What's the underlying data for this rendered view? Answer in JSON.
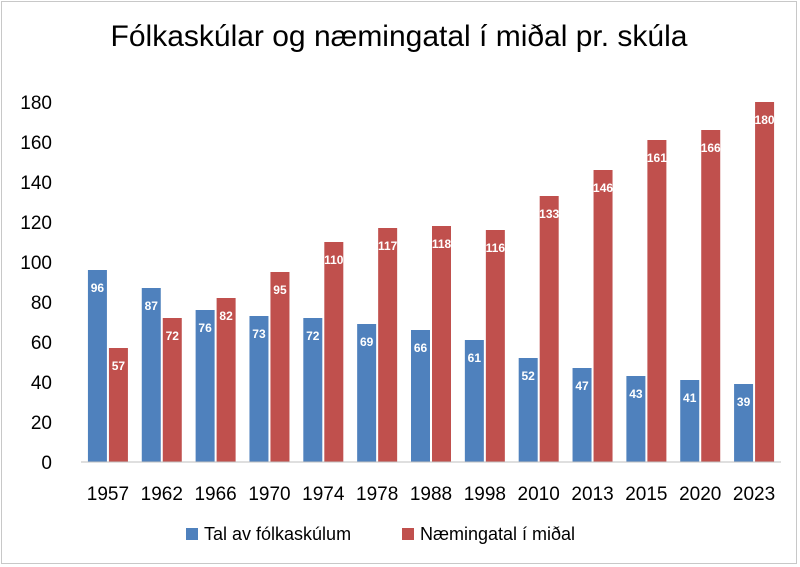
{
  "chart_data": {
    "type": "bar",
    "title": "Fólkaskúlar og næmingatal í miðal pr. skúla",
    "xlabel": "",
    "ylabel": "",
    "ylim": [
      0,
      180
    ],
    "yticks": [
      0,
      20,
      40,
      60,
      80,
      100,
      120,
      140,
      160,
      180
    ],
    "grid": false,
    "legend_position": "bottom",
    "categories": [
      "1957",
      "1962",
      "1966",
      "1970",
      "1974",
      "1978",
      "1988",
      "1998",
      "2010",
      "2013",
      "2015",
      "2020",
      "2023"
    ],
    "series": [
      {
        "name": "Tal av fólkaskúlum",
        "color": "#4f81bd",
        "values": [
          96,
          87,
          76,
          73,
          72,
          69,
          66,
          61,
          52,
          47,
          43,
          41,
          39
        ]
      },
      {
        "name": "Næmingatal í miðal",
        "color": "#c0504d",
        "values": [
          57,
          72,
          82,
          95,
          110,
          117,
          118,
          116,
          133,
          146,
          161,
          166,
          180
        ]
      }
    ]
  }
}
